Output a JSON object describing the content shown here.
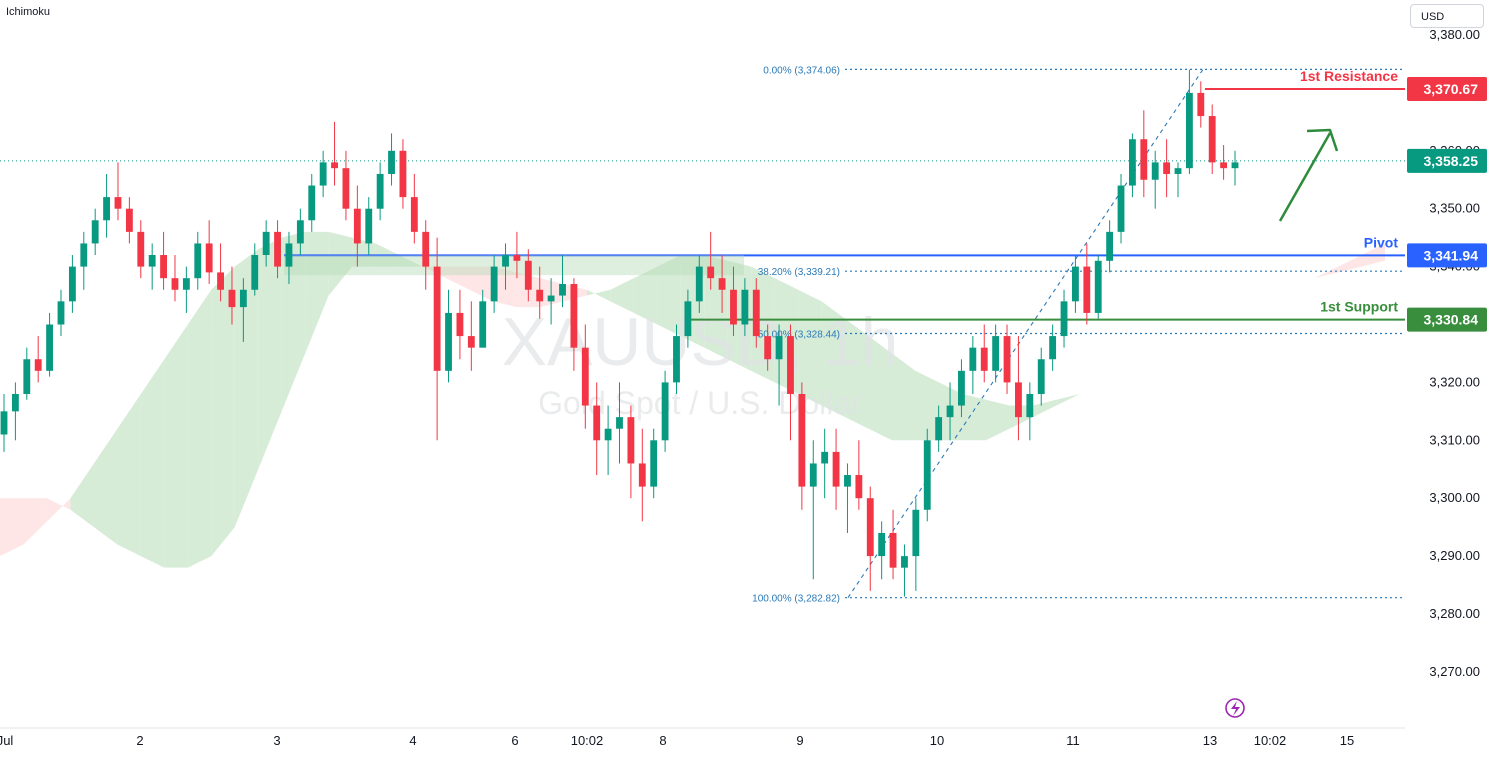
{
  "indicator_label": "Ichimoku",
  "currency_button": "USD",
  "chart_data": {
    "type": "candlestick",
    "watermark": {
      "symbol": "XAUUSD, 1h",
      "description": "Gold Spot / U.S. Dollar"
    },
    "y_axis": {
      "ticks": [
        3270,
        3280,
        3290,
        3300,
        3310,
        3320,
        3330,
        3340,
        3350,
        3360,
        3370,
        3380
      ],
      "tick_labels": [
        "3,270.00",
        "3,280.00",
        "3,290.00",
        "3,300.00",
        "3,310.00",
        "3,320.00",
        "3,330.00",
        "3,340.00",
        "3,350.00",
        "3,360.00",
        "3,370.00",
        "3,380.00"
      ],
      "range": [
        3261,
        3385
      ]
    },
    "x_axis": {
      "tick_labels": [
        "Jul",
        "2",
        "3",
        "4",
        "6",
        "10:02",
        "8",
        "9",
        "10",
        "11",
        "13",
        "10:02",
        "15"
      ]
    },
    "colors": {
      "up": "#089981",
      "down": "#f23645",
      "pivot": "#2962ff",
      "support": "#2e8b3c",
      "resistance": "#f23645",
      "fib": "#2a7ab8",
      "cloud_green": "#c8e6c9",
      "cloud_red": "#fddede"
    },
    "levels": [
      {
        "name": "1st Resistance",
        "value": 3370.67,
        "label": "3,370.67",
        "color": "#f23645"
      },
      {
        "name": "Pivot",
        "value": 3341.94,
        "label": "3,341.94",
        "color": "#2962ff"
      },
      {
        "name": "1st Support",
        "value": 3330.84,
        "label": "3,330.84",
        "color": "#388e3c"
      }
    ],
    "current_price": {
      "value": 3358.25,
      "label": "3,358.25",
      "color": "#089981"
    },
    "fibonacci": [
      {
        "label": "0.00% (3,374.06)",
        "value": 3374.06
      },
      {
        "label": "38.20% (3,339.21)",
        "value": 3339.21
      },
      {
        "label": "50.00% (3,328.44)",
        "value": 3328.44
      },
      {
        "label": "100.00% (3,282.82)",
        "value": 3282.82
      }
    ],
    "candles": [
      [
        3311,
        3318,
        3308,
        3315
      ],
      [
        3315,
        3320,
        3310,
        3318
      ],
      [
        3318,
        3326,
        3317,
        3324
      ],
      [
        3324,
        3328,
        3320,
        3322
      ],
      [
        3322,
        3332,
        3321,
        3330
      ],
      [
        3330,
        3336,
        3328,
        3334
      ],
      [
        3334,
        3342,
        3332,
        3340
      ],
      [
        3340,
        3346,
        3336,
        3344
      ],
      [
        3344,
        3350,
        3342,
        3348
      ],
      [
        3348,
        3356,
        3345,
        3352
      ],
      [
        3352,
        3358,
        3348,
        3350
      ],
      [
        3350,
        3352,
        3344,
        3346
      ],
      [
        3346,
        3348,
        3338,
        3340
      ],
      [
        3340,
        3344,
        3336,
        3342
      ],
      [
        3342,
        3346,
        3336,
        3338
      ],
      [
        3338,
        3342,
        3334,
        3336
      ],
      [
        3336,
        3340,
        3332,
        3338
      ],
      [
        3338,
        3346,
        3336,
        3344
      ],
      [
        3344,
        3348,
        3337,
        3339
      ],
      [
        3339,
        3344,
        3334,
        3336
      ],
      [
        3336,
        3340,
        3330,
        3333
      ],
      [
        3333,
        3338,
        3327,
        3336
      ],
      [
        3336,
        3344,
        3335,
        3342
      ],
      [
        3342,
        3348,
        3340,
        3346
      ],
      [
        3346,
        3348,
        3338,
        3340
      ],
      [
        3340,
        3346,
        3337,
        3344
      ],
      [
        3344,
        3350,
        3342,
        3348
      ],
      [
        3348,
        3356,
        3346,
        3354
      ],
      [
        3354,
        3360,
        3352,
        3358
      ],
      [
        3358,
        3365,
        3354,
        3357
      ],
      [
        3357,
        3360,
        3348,
        3350
      ],
      [
        3350,
        3354,
        3340,
        3344
      ],
      [
        3344,
        3352,
        3342,
        3350
      ],
      [
        3350,
        3358,
        3348,
        3356
      ],
      [
        3356,
        3363,
        3354,
        3360
      ],
      [
        3360,
        3362,
        3350,
        3352
      ],
      [
        3352,
        3356,
        3344,
        3346
      ],
      [
        3346,
        3348,
        3336,
        3340
      ],
      [
        3340,
        3345,
        3310,
        3322
      ],
      [
        3322,
        3336,
        3320,
        3332
      ],
      [
        3332,
        3336,
        3324,
        3328
      ],
      [
        3328,
        3334,
        3322,
        3326
      ],
      [
        3326,
        3336,
        3326,
        3334
      ],
      [
        3334,
        3342,
        3332,
        3340
      ],
      [
        3340,
        3344,
        3336,
        3342
      ],
      [
        3342,
        3346,
        3338,
        3341
      ],
      [
        3341,
        3343,
        3334,
        3336
      ],
      [
        3336,
        3340,
        3331,
        3334
      ],
      [
        3334,
        3338,
        3330,
        3335
      ],
      [
        3335,
        3342,
        3333,
        3337
      ],
      [
        3337,
        3338,
        3322,
        3326
      ],
      [
        3326,
        3330,
        3312,
        3316
      ],
      [
        3316,
        3320,
        3304,
        3310
      ],
      [
        3310,
        3316,
        3304,
        3312
      ],
      [
        3312,
        3320,
        3306,
        3314
      ],
      [
        3314,
        3316,
        3300,
        3306
      ],
      [
        3306,
        3312,
        3296,
        3302
      ],
      [
        3302,
        3312,
        3300,
        3310
      ],
      [
        3310,
        3322,
        3308,
        3320
      ],
      [
        3320,
        3330,
        3318,
        3328
      ],
      [
        3328,
        3336,
        3326,
        3334
      ],
      [
        3334,
        3342,
        3332,
        3340
      ],
      [
        3340,
        3346,
        3336,
        3338
      ],
      [
        3338,
        3342,
        3332,
        3336
      ],
      [
        3336,
        3340,
        3328,
        3330
      ],
      [
        3330,
        3338,
        3328,
        3336
      ],
      [
        3336,
        3338,
        3326,
        3328
      ],
      [
        3328,
        3330,
        3322,
        3324
      ],
      [
        3324,
        3330,
        3316,
        3328
      ],
      [
        3328,
        3330,
        3310,
        3318
      ],
      [
        3318,
        3320,
        3298,
        3302
      ],
      [
        3302,
        3310,
        3286,
        3306
      ],
      [
        3306,
        3312,
        3300,
        3308
      ],
      [
        3308,
        3312,
        3298,
        3302
      ],
      [
        3302,
        3306,
        3294,
        3304
      ],
      [
        3304,
        3310,
        3298,
        3300
      ],
      [
        3300,
        3302,
        3284,
        3290
      ],
      [
        3290,
        3296,
        3286,
        3294
      ],
      [
        3294,
        3298,
        3286,
        3288
      ],
      [
        3288,
        3292,
        3283,
        3290
      ],
      [
        3290,
        3300,
        3284,
        3298
      ],
      [
        3298,
        3312,
        3296,
        3310
      ],
      [
        3310,
        3316,
        3308,
        3314
      ],
      [
        3314,
        3320,
        3310,
        3316
      ],
      [
        3316,
        3324,
        3314,
        3322
      ],
      [
        3322,
        3328,
        3318,
        3326
      ],
      [
        3326,
        3330,
        3320,
        3322
      ],
      [
        3322,
        3330,
        3320,
        3328
      ],
      [
        3328,
        3330,
        3318,
        3320
      ],
      [
        3320,
        3328,
        3310,
        3314
      ],
      [
        3314,
        3320,
        3310,
        3318
      ],
      [
        3318,
        3326,
        3316,
        3324
      ],
      [
        3324,
        3330,
        3322,
        3328
      ],
      [
        3328,
        3336,
        3326,
        3334
      ],
      [
        3334,
        3342,
        3332,
        3340
      ],
      [
        3340,
        3344,
        3330,
        3332
      ],
      [
        3332,
        3342,
        3331,
        3341
      ],
      [
        3341,
        3348,
        3339,
        3346
      ],
      [
        3346,
        3356,
        3344,
        3354
      ],
      [
        3354,
        3363,
        3352,
        3362
      ],
      [
        3362,
        3367,
        3352,
        3355
      ],
      [
        3355,
        3360,
        3350,
        3358
      ],
      [
        3358,
        3362,
        3352,
        3356
      ],
      [
        3356,
        3358,
        3352,
        3357
      ],
      [
        3357,
        3374,
        3356,
        3370
      ],
      [
        3370,
        3372,
        3364,
        3366
      ],
      [
        3366,
        3368,
        3356,
        3358
      ],
      [
        3358,
        3361,
        3355,
        3357
      ],
      [
        3357,
        3360,
        3354,
        3358
      ]
    ],
    "ichimoku_cloud": {
      "lead_a": [
        3290,
        3292,
        3296,
        3300,
        3306,
        3312,
        3318,
        3324,
        3330,
        3336,
        3340,
        3343,
        3345,
        3346,
        3346,
        3345,
        3344,
        3342,
        3340,
        3338,
        3336,
        3334,
        3333,
        3333,
        3334,
        3335,
        3336,
        3338,
        3340,
        3342,
        3342,
        3341,
        3340,
        3338,
        3336,
        3334,
        3331,
        3328,
        3325,
        3322,
        3320,
        3318,
        3317,
        3316,
        3316,
        3317,
        3318,
        3320,
        3322,
        3324,
        3326,
        3328,
        3330,
        3332,
        3334,
        3336,
        3338,
        3339,
        3340,
        3341
      ],
      "lead_b": [
        3300,
        3300,
        3300,
        3298,
        3295,
        3292,
        3290,
        3288,
        3288,
        3290,
        3295,
        3305,
        3315,
        3325,
        3335,
        3340,
        3340,
        3340,
        3340,
        3340,
        3340,
        3340,
        3339,
        3338,
        3337,
        3336,
        3334,
        3332,
        3330,
        3328,
        3326,
        3324,
        3322,
        3320,
        3318,
        3316,
        3314,
        3312,
        3310,
        3310,
        3310,
        3310,
        3310,
        3312,
        3314,
        3316,
        3318,
        3320,
        3322,
        3324,
        3326,
        3328,
        3330,
        3332,
        3334,
        3336,
        3338,
        3340,
        3342,
        3344
      ]
    }
  }
}
